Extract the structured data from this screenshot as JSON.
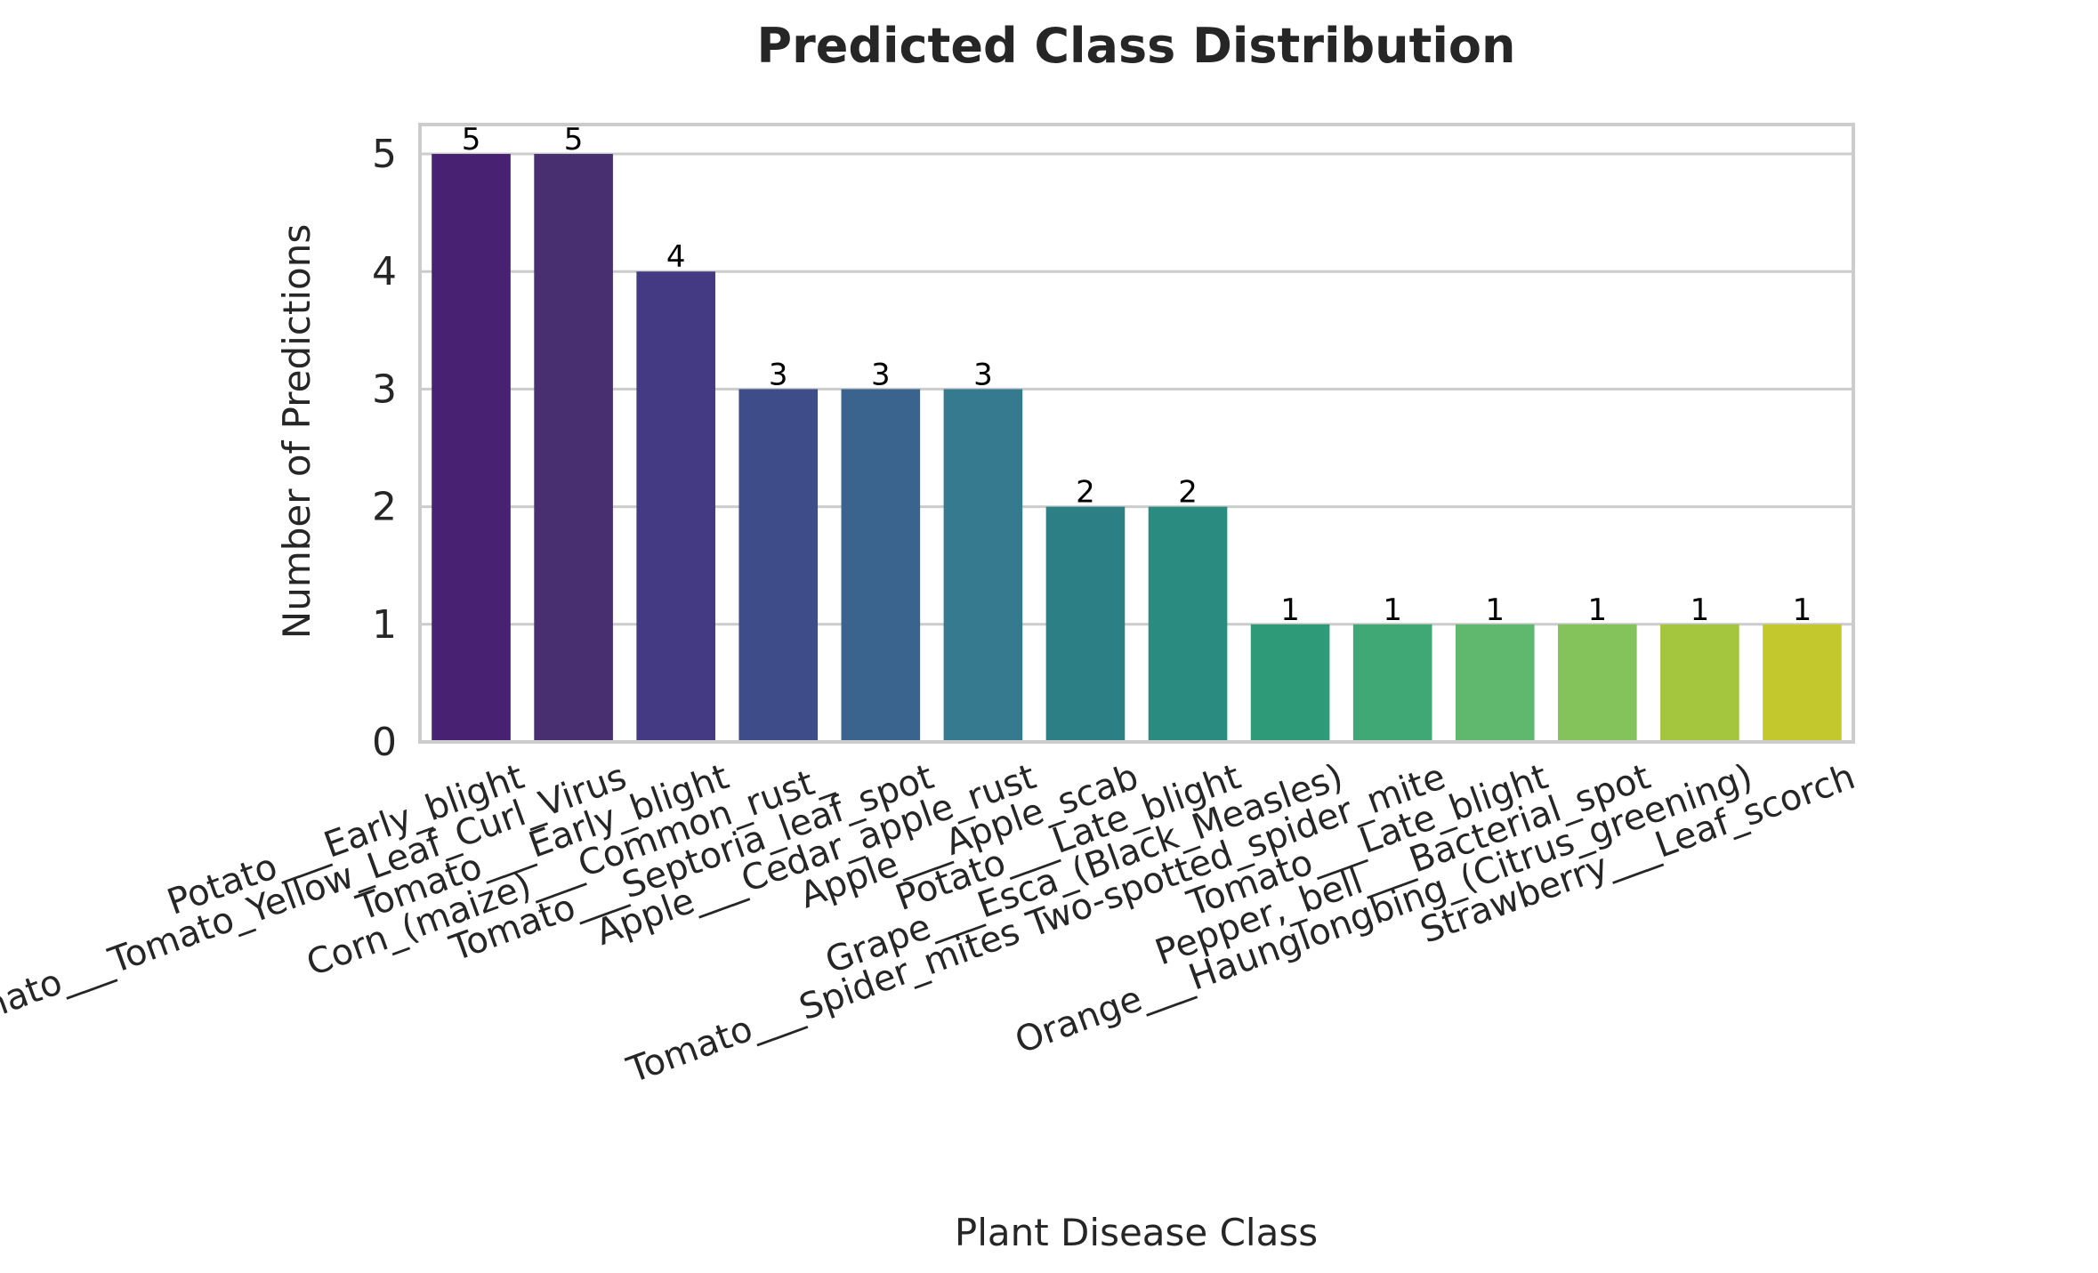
{
  "chart_data": {
    "type": "bar",
    "title": "Predicted Class Distribution",
    "xlabel": "Plant Disease Class",
    "ylabel": "Number of Predictions",
    "ylim": [
      0,
      5.25
    ],
    "yticks": [
      0,
      1,
      2,
      3,
      4,
      5
    ],
    "grid": true,
    "categories": [
      "Potato___Early_blight",
      "Tomato___Tomato_Yellow_Leaf_Curl_Virus",
      "Tomato___Early_blight",
      "Corn_(maize)___Common_rust_",
      "Tomato___Septoria_leaf_spot",
      "Apple___Cedar_apple_rust",
      "Apple___Apple_scab",
      "Potato___Late_blight",
      "Grape___Esca_(Black_Measles)",
      "Tomato___Spider_mites Two-spotted_spider_mite",
      "Tomato___Late_blight",
      "Pepper,_bell___Bacterial_spot",
      "Orange___Haunglongbing_(Citrus_greening)",
      "Strawberry___Leaf_scorch"
    ],
    "values": [
      5,
      5,
      4,
      3,
      3,
      3,
      2,
      2,
      1,
      1,
      1,
      1,
      1,
      1
    ],
    "colors": [
      "#482173",
      "#482f6f",
      "#443a83",
      "#3e4c8a",
      "#3a638d",
      "#357a8e",
      "#2c7f84",
      "#2a8b80",
      "#2f9a78",
      "#3fa874",
      "#60b86e",
      "#84c25c",
      "#a4c53e",
      "#c3c82d"
    ]
  }
}
